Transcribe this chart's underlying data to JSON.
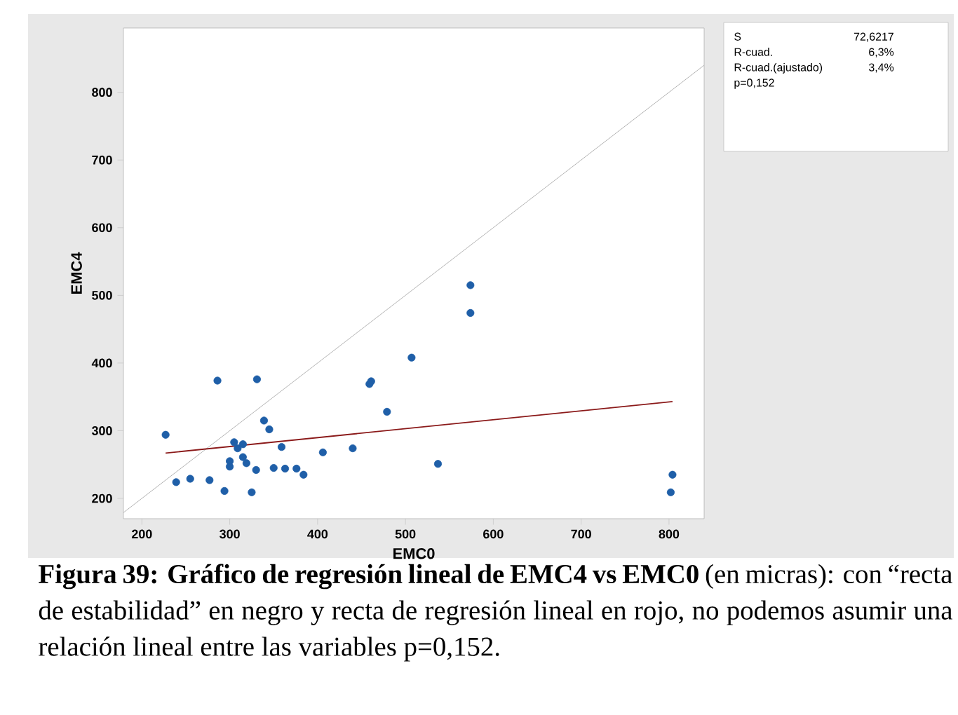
{
  "chart_data": {
    "type": "scatter",
    "xlabel": "EMC0",
    "ylabel": "EMC4",
    "xlim": [
      179,
      840
    ],
    "ylim": [
      170,
      895
    ],
    "xticks": [
      200,
      300,
      400,
      500,
      600,
      700,
      800
    ],
    "yticks": [
      200,
      300,
      400,
      500,
      600,
      700,
      800
    ],
    "marker": "circle",
    "series": [
      {
        "type": "line",
        "marker": "none",
        "color": "#b4b4b4",
        "x": [
          179,
          840
        ],
        "values": [
          179,
          840
        ]
      },
      {
        "type": "line",
        "marker": "none",
        "color": "#8b1a1a",
        "x": [
          227,
          804
        ],
        "values": [
          267,
          343
        ]
      },
      {
        "type": "scatter",
        "color": "#1f5fa8",
        "x": [
          227,
          239,
          255,
          277,
          286,
          294,
          300,
          300,
          305,
          309,
          315,
          315,
          319,
          325,
          330,
          331,
          339,
          345,
          350,
          359,
          363,
          376,
          384,
          406,
          440,
          459,
          461,
          479,
          507,
          537,
          574,
          574,
          804,
          802
        ],
        "values": [
          294,
          224,
          229,
          227,
          374,
          211,
          255,
          247,
          283,
          274,
          280,
          261,
          252,
          209,
          242,
          376,
          315,
          302,
          245,
          276,
          244,
          244,
          235,
          268,
          274,
          369,
          373,
          328,
          408,
          251,
          515,
          474,
          235,
          209
        ]
      }
    ],
    "annotations": [
      "S",
      "72,6217",
      "R-cuad.",
      "6,3%",
      "R-cuad.(ajustado)",
      "3,4%",
      "p=0,152",
      "**Figura 39: Gráfico de regresión lineal de EMC4 vs EMC0** (en micras): con “recta de estabilidad” en negro y recta de regresión lineal en rojo, no podemos asumir una relación lineal entre las variables p=0,152."
    ]
  }
}
